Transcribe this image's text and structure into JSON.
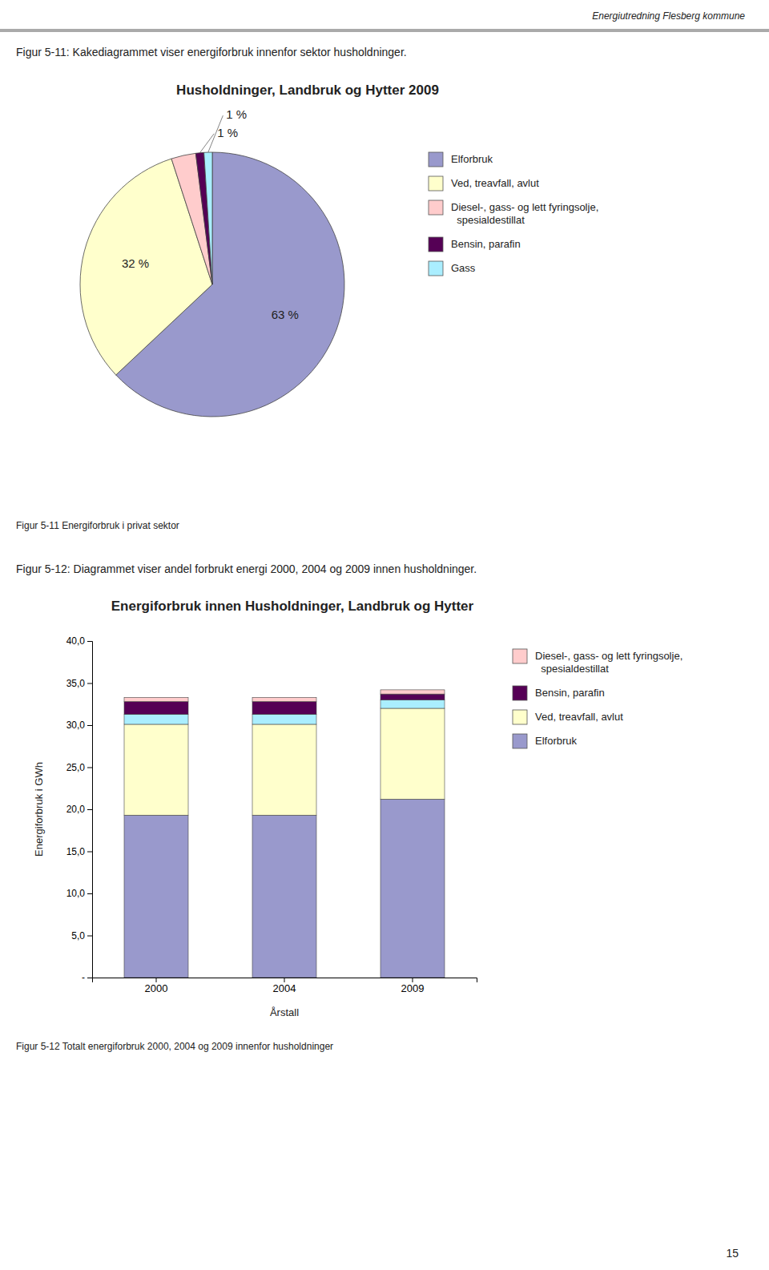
{
  "page_header": "Energiutredning Flesberg kommune",
  "page_number": "15",
  "chart_data": [
    {
      "type": "pie",
      "title": "Husholdninger, Landbruk og Hytter 2009",
      "annotations": [
        "Figur 5-11: Kakediagrammet viser energiforbruk innenfor sektor husholdninger.",
        "Figur 5-11 Energiforbruk i privat sektor"
      ],
      "categories": [
        "Elforbruk",
        "Ved, treavfall, avlut",
        "Diesel-, gass- og lett fyringsolje,\n  spesialdestillat",
        "Bensin, parafin",
        "Gass"
      ],
      "values": [
        63,
        32,
        3,
        1,
        1
      ],
      "colors": [
        "#9999cc",
        "#ffffcc",
        "#ffcccc",
        "#550055",
        "#aaeeff"
      ],
      "data_labels": true,
      "value_labels": [
        "63 %",
        "32 %",
        null,
        "1 %",
        "1 %"
      ],
      "legend": "right"
    },
    {
      "type": "bar",
      "stacked": true,
      "title": "Energiforbruk innen Husholdninger, Landbruk og Hytter",
      "annotations": [
        "Figur 5-12: Diagrammet viser andel forbrukt energi 2000, 2004 og 2009 innen husholdninger.",
        "Figur 5-12 Totalt energiforbruk 2000, 2004 og 2009 innenfor husholdninger"
      ],
      "xlabel": "Årstall",
      "ylabel": "Energiforbruk i GWh",
      "categories": [
        "2000",
        "2004",
        "2009"
      ],
      "series": [
        {
          "name": "Elforbruk",
          "color": "#9999cc",
          "values": [
            19.3,
            19.3,
            21.2
          ]
        },
        {
          "name": "Ved, treavfall, avlut",
          "color": "#ffffcc",
          "values": [
            10.8,
            10.8,
            10.8
          ]
        },
        {
          "color": "#aaeeff",
          "values": [
            1.2,
            1.2,
            1.0
          ]
        },
        {
          "name": "Bensin, parafin",
          "color": "#550055",
          "values": [
            1.5,
            1.5,
            0.7
          ]
        },
        {
          "name": "Diesel-, gass- og lett fyringsolje,\n  spesialdestillat",
          "color": "#ffcccc",
          "values": [
            0.5,
            0.5,
            0.5
          ]
        }
      ],
      "ylim": [
        0,
        40
      ],
      "yticks": [
        {
          "value": 0,
          "label": "-"
        },
        {
          "value": 5,
          "label": "5,0"
        },
        {
          "value": 10,
          "label": "10,0"
        },
        {
          "value": 15,
          "label": "15,0"
        },
        {
          "value": 20,
          "label": "20,0"
        },
        {
          "value": 25,
          "label": "25,0"
        },
        {
          "value": 30,
          "label": "30,0"
        },
        {
          "value": 35,
          "label": "35,0"
        },
        {
          "value": 40,
          "label": "40,0"
        }
      ],
      "grid": false,
      "legend": "right"
    }
  ]
}
